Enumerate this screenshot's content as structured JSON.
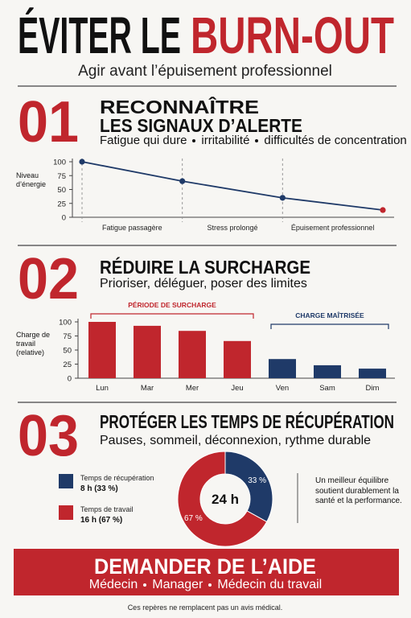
{
  "header": {
    "title_black": "ÉVITER LE",
    "title_red": "BURN-OUT",
    "subtitle": "Agir avant l’épuisement professionnel"
  },
  "sections": [
    {
      "number": "01",
      "title_lines": [
        "RECONNAÎTRE",
        "LES SIGNAUX D’ALERTE"
      ],
      "items": [
        "Fatigue qui dure",
        "irritabilité",
        "difficultés de concentration"
      ]
    },
    {
      "number": "02",
      "title_lines": [
        "RÉDUIRE LA SURCHARGE"
      ],
      "subtitle": "Prioriser, déléguer, poser des limites"
    },
    {
      "number": "03",
      "title_lines": [
        "PROTÉGER LES TEMPS DE RÉCUPÉRATION"
      ],
      "subtitle": "Pauses, sommeil, déconnexion, rythme durable"
    }
  ],
  "chart_data": [
    {
      "type": "line",
      "ylabel": "Niveau d’énergie",
      "categories": [
        null,
        null,
        null,
        null
      ],
      "values": [
        100,
        65,
        35,
        13
      ],
      "color": "#1f3a68",
      "point_colors": [
        "#1f3a68",
        "#1f3a68",
        "#1f3a68",
        "#c0262d"
      ],
      "phases": [
        "Fatigue passagère",
        "Stress prolongé",
        "Épuisement professionnel"
      ],
      "ylim": [
        0,
        100
      ],
      "yticks": [
        0,
        25,
        50,
        75,
        100
      ]
    },
    {
      "type": "bar",
      "ylabel": "Charge de travail (relative)",
      "categories": [
        "Lun",
        "Mar",
        "Mer",
        "Jeu",
        "Ven",
        "Sam",
        "Dim"
      ],
      "values": [
        100,
        93,
        84,
        66,
        34,
        23,
        17
      ],
      "colors": [
        "#c0262d",
        "#c0262d",
        "#c0262d",
        "#c0262d",
        "#1f3a68",
        "#1f3a68",
        "#1f3a68"
      ],
      "groups": [
        {
          "label": "PÉRIODE DE SURCHARGE",
          "color": "#c0262d"
        },
        {
          "label": "CHARGE MAÎTRISÉE",
          "color": "#1f3a68"
        }
      ],
      "ylim": [
        0,
        100
      ],
      "yticks": [
        0,
        25,
        50,
        75,
        100
      ]
    },
    {
      "type": "pie",
      "center_label": "24 h",
      "categories": [
        "Temps de récupération",
        "Temps de travail"
      ],
      "details": [
        "8 h (33 %)",
        "16 h (67 %)"
      ],
      "values": [
        33,
        67
      ],
      "value_labels": [
        "33 %",
        "67 %"
      ],
      "colors": [
        "#1f3a68",
        "#c0262d"
      ],
      "note": "Un meilleur équilibre soutient durablement la santé et la performance."
    }
  ],
  "footer": {
    "title": "DEMANDER DE L’AIDE",
    "items": [
      "Médecin",
      "Manager",
      "Médecin du travail"
    ],
    "disclaimer": "Ces repères ne remplacent pas un avis médical."
  }
}
